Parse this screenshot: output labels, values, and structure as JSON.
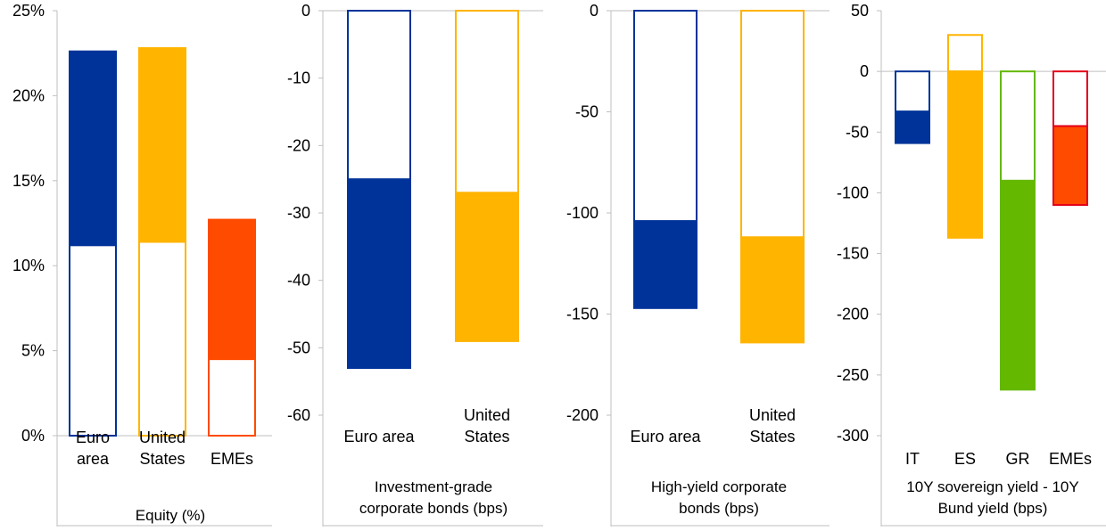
{
  "colors": {
    "euro_area": "#003399",
    "united_states": "#FFB400",
    "emes": "#FF4B00",
    "gr": "#65B800",
    "emes_outline": "#E3001B",
    "axis": "#BFBFBF"
  },
  "chart_data": [
    {
      "type": "bar",
      "title": "Equity (%)",
      "categories": [
        "Euro\narea",
        "United\nStates",
        "EMEs"
      ],
      "ylim": [
        0,
        25
      ],
      "yticks": [
        "0%",
        "5%",
        "10%",
        "15%",
        "20%",
        "25%"
      ],
      "series": [
        {
          "values": [
            22.6,
            22.8,
            12.7
          ]
        },
        {
          "values": [
            11.2,
            11.4,
            4.5
          ]
        }
      ],
      "colors": [
        "#003399",
        "#FFB400",
        "#FF4B00"
      ]
    },
    {
      "type": "bar",
      "title": "Investment-grade\ncorporate bonds (bps)",
      "categories": [
        "Euro area",
        "United\nStates"
      ],
      "ylim": [
        -60,
        0
      ],
      "yticks": [
        "0",
        "-10",
        "-20",
        "-30",
        "-40",
        "-50",
        "-60"
      ],
      "series": [
        {
          "values": [
            -53,
            -49
          ]
        },
        {
          "values": [
            -25,
            -27
          ]
        }
      ],
      "colors": [
        "#003399",
        "#FFB400"
      ]
    },
    {
      "type": "bar",
      "title": "High-yield corporate\nbonds (bps)",
      "categories": [
        "Euro area",
        "United\nStates"
      ],
      "ylim": [
        -200,
        0
      ],
      "yticks": [
        "0",
        "-50",
        "-100",
        "-150",
        "-200"
      ],
      "series": [
        {
          "values": [
            -147,
            -164
          ]
        },
        {
          "values": [
            -104,
            -112
          ]
        }
      ],
      "colors": [
        "#003399",
        "#FFB400"
      ]
    },
    {
      "type": "bar",
      "title": "10Y sovereign yield - 10Y\nBund yield (bps)",
      "categories": [
        "IT",
        "ES",
        "GR",
        "EMEs"
      ],
      "ylim": [
        -300,
        50
      ],
      "yticks": [
        "50",
        "0",
        "-50",
        "-100",
        "-150",
        "-200",
        "-250",
        "-300"
      ],
      "series": [
        {
          "values": [
            -59,
            30,
            -262,
            -110
          ]
        },
        {
          "values": [
            -33,
            -137,
            -90,
            -45
          ]
        }
      ],
      "colors": [
        "#003399",
        "#FFB400",
        "#65B800",
        "#FF4B00"
      ],
      "outline_colors": [
        "#003399",
        "#FFB400",
        "#65B800",
        "#E3001B"
      ]
    }
  ]
}
